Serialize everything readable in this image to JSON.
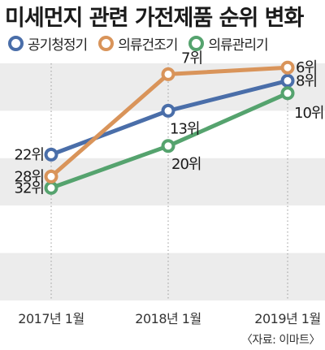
{
  "chart_data": {
    "type": "line",
    "title": "미세먼지 관련 가전제품 순위 변화",
    "categories": [
      "2017년 1월",
      "2018년 1월",
      "2019년 1월"
    ],
    "series": [
      {
        "name": "공기청정기",
        "color": "#4a6ea9",
        "values": [
          22,
          13,
          8
        ],
        "labels": [
          "22위",
          "13위",
          "8위"
        ]
      },
      {
        "name": "의류건조기",
        "color": "#d9945a",
        "values": [
          28,
          7,
          6
        ],
        "labels": [
          "28위",
          "7위",
          "6위"
        ]
      },
      {
        "name": "의류관리기",
        "color": "#55a36e",
        "values": [
          32,
          20,
          10
        ],
        "labels": [
          "32위",
          "20위",
          "10위"
        ]
      }
    ],
    "y_scale": "rank, inverted (1위 at top)",
    "grid": "alternating horizontal bands",
    "source": "〈자료: 이마트〉"
  }
}
